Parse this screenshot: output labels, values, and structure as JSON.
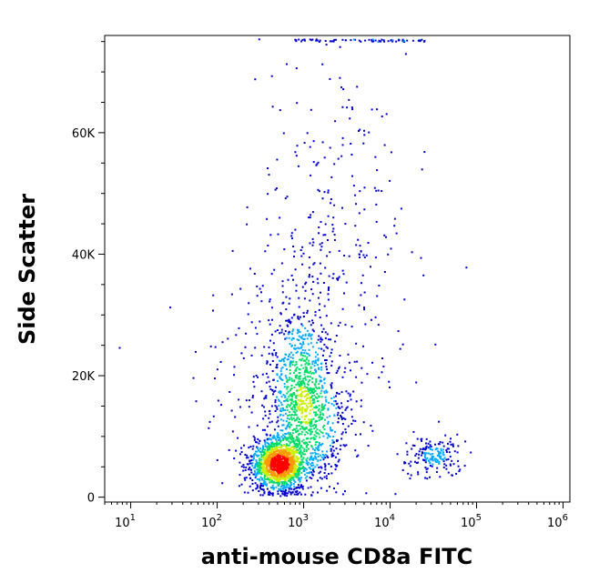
{
  "chart_data": {
    "type": "scatter",
    "title": "",
    "xlabel": "anti-mouse CD8a FITC",
    "ylabel": "Side Scatter",
    "x_scale": "log",
    "xlim": [
      5,
      1200000
    ],
    "ylim": [
      -800,
      76000
    ],
    "x_ticks": [
      {
        "value": 10,
        "base": "10",
        "exp": "1"
      },
      {
        "value": 100,
        "base": "10",
        "exp": "2"
      },
      {
        "value": 1000,
        "base": "10",
        "exp": "3"
      },
      {
        "value": 10000,
        "base": "10",
        "exp": "4"
      },
      {
        "value": 100000,
        "base": "10",
        "exp": "5"
      },
      {
        "value": 1000000,
        "base": "10",
        "exp": "6"
      }
    ],
    "y_ticks": [
      {
        "value": 0,
        "label": "0"
      },
      {
        "value": 20000,
        "label": "20K"
      },
      {
        "value": 40000,
        "label": "40K"
      },
      {
        "value": 60000,
        "label": "60K"
      }
    ],
    "density_colors": [
      "#0000cc",
      "#00aaff",
      "#00dd66",
      "#ccee00",
      "#ff9900",
      "#ff0000"
    ],
    "clusters": [
      {
        "cx": 500,
        "cy": 5500,
        "sx_log": 0.16,
        "sy": 2200,
        "n": 1400,
        "peak": 1.0
      },
      {
        "cx": 900,
        "cy": 18000,
        "sx_log": 0.18,
        "sy": 7000,
        "n": 700,
        "peak": 0.35
      },
      {
        "cx": 1400,
        "cy": 12000,
        "sx_log": 0.22,
        "sy": 5000,
        "n": 350,
        "peak": 0.25
      },
      {
        "cx": 32000,
        "cy": 7000,
        "sx_log": 0.17,
        "sy": 1800,
        "n": 180,
        "peak": 0.25
      },
      {
        "cx": 2000,
        "cy": 40000,
        "sx_log": 0.45,
        "sy": 17000,
        "n": 350,
        "peak": 0.08
      },
      {
        "cx": 300,
        "cy": 20000,
        "sx_log": 0.4,
        "sy": 10000,
        "n": 120,
        "peak": 0.06
      }
    ],
    "top_edge_events": {
      "x_from": 700,
      "x_to": 25000,
      "y": 75500,
      "n": 70
    }
  }
}
